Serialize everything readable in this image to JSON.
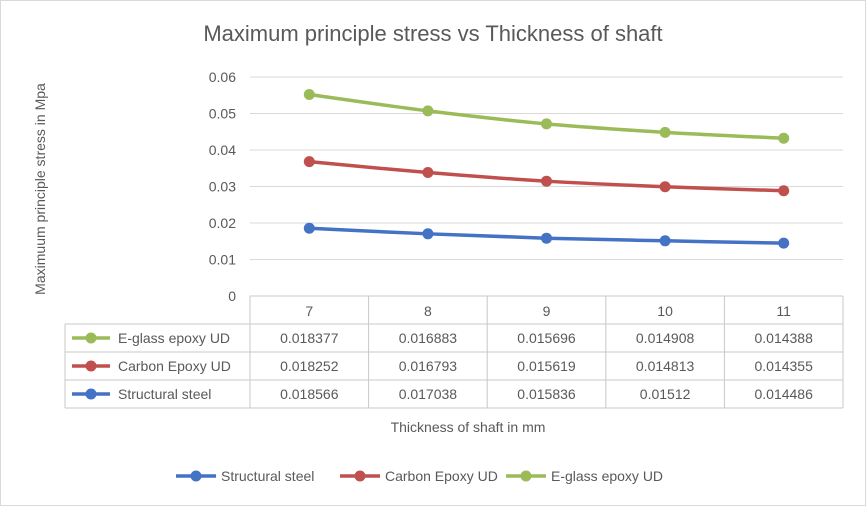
{
  "chart_data": {
    "type": "line",
    "title": "Maximum principle stress vs Thickness of shaft",
    "xlabel": "Thickness of shaft in mm",
    "ylabel": "Maximuum principle stress in Mpa",
    "categories": [
      "7",
      "8",
      "9",
      "10",
      "11"
    ],
    "ylim": [
      0,
      0.06
    ],
    "yticks": [
      "0",
      "0.01",
      "0.02",
      "0.03",
      "0.04",
      "0.05",
      "0.06"
    ],
    "ytick_values": [
      0,
      0.01,
      0.02,
      0.03,
      0.04,
      0.05,
      0.06
    ],
    "grid": true,
    "stacked": true,
    "legend_position": "bottom",
    "series": [
      {
        "name": "Structural steel",
        "color": "#4472c4",
        "values": [
          0.018566,
          0.017038,
          0.015836,
          0.01512,
          0.014486
        ],
        "labels": [
          "0.018566",
          "0.017038",
          "0.015836",
          "0.01512",
          "0.014486"
        ]
      },
      {
        "name": "Carbon Epoxy UD",
        "color": "#c0504d",
        "values": [
          0.018252,
          0.016793,
          0.015619,
          0.014813,
          0.014355
        ],
        "labels": [
          "0.018252",
          "0.016793",
          "0.015619",
          "0.014813",
          "0.014355"
        ]
      },
      {
        "name": "E-glass epoxy UD",
        "color": "#9bbb59",
        "values": [
          0.018377,
          0.016883,
          0.015696,
          0.014908,
          0.014388
        ],
        "labels": [
          "0.018377",
          "0.016883",
          "0.015696",
          "0.014908",
          "0.014388"
        ]
      }
    ]
  }
}
